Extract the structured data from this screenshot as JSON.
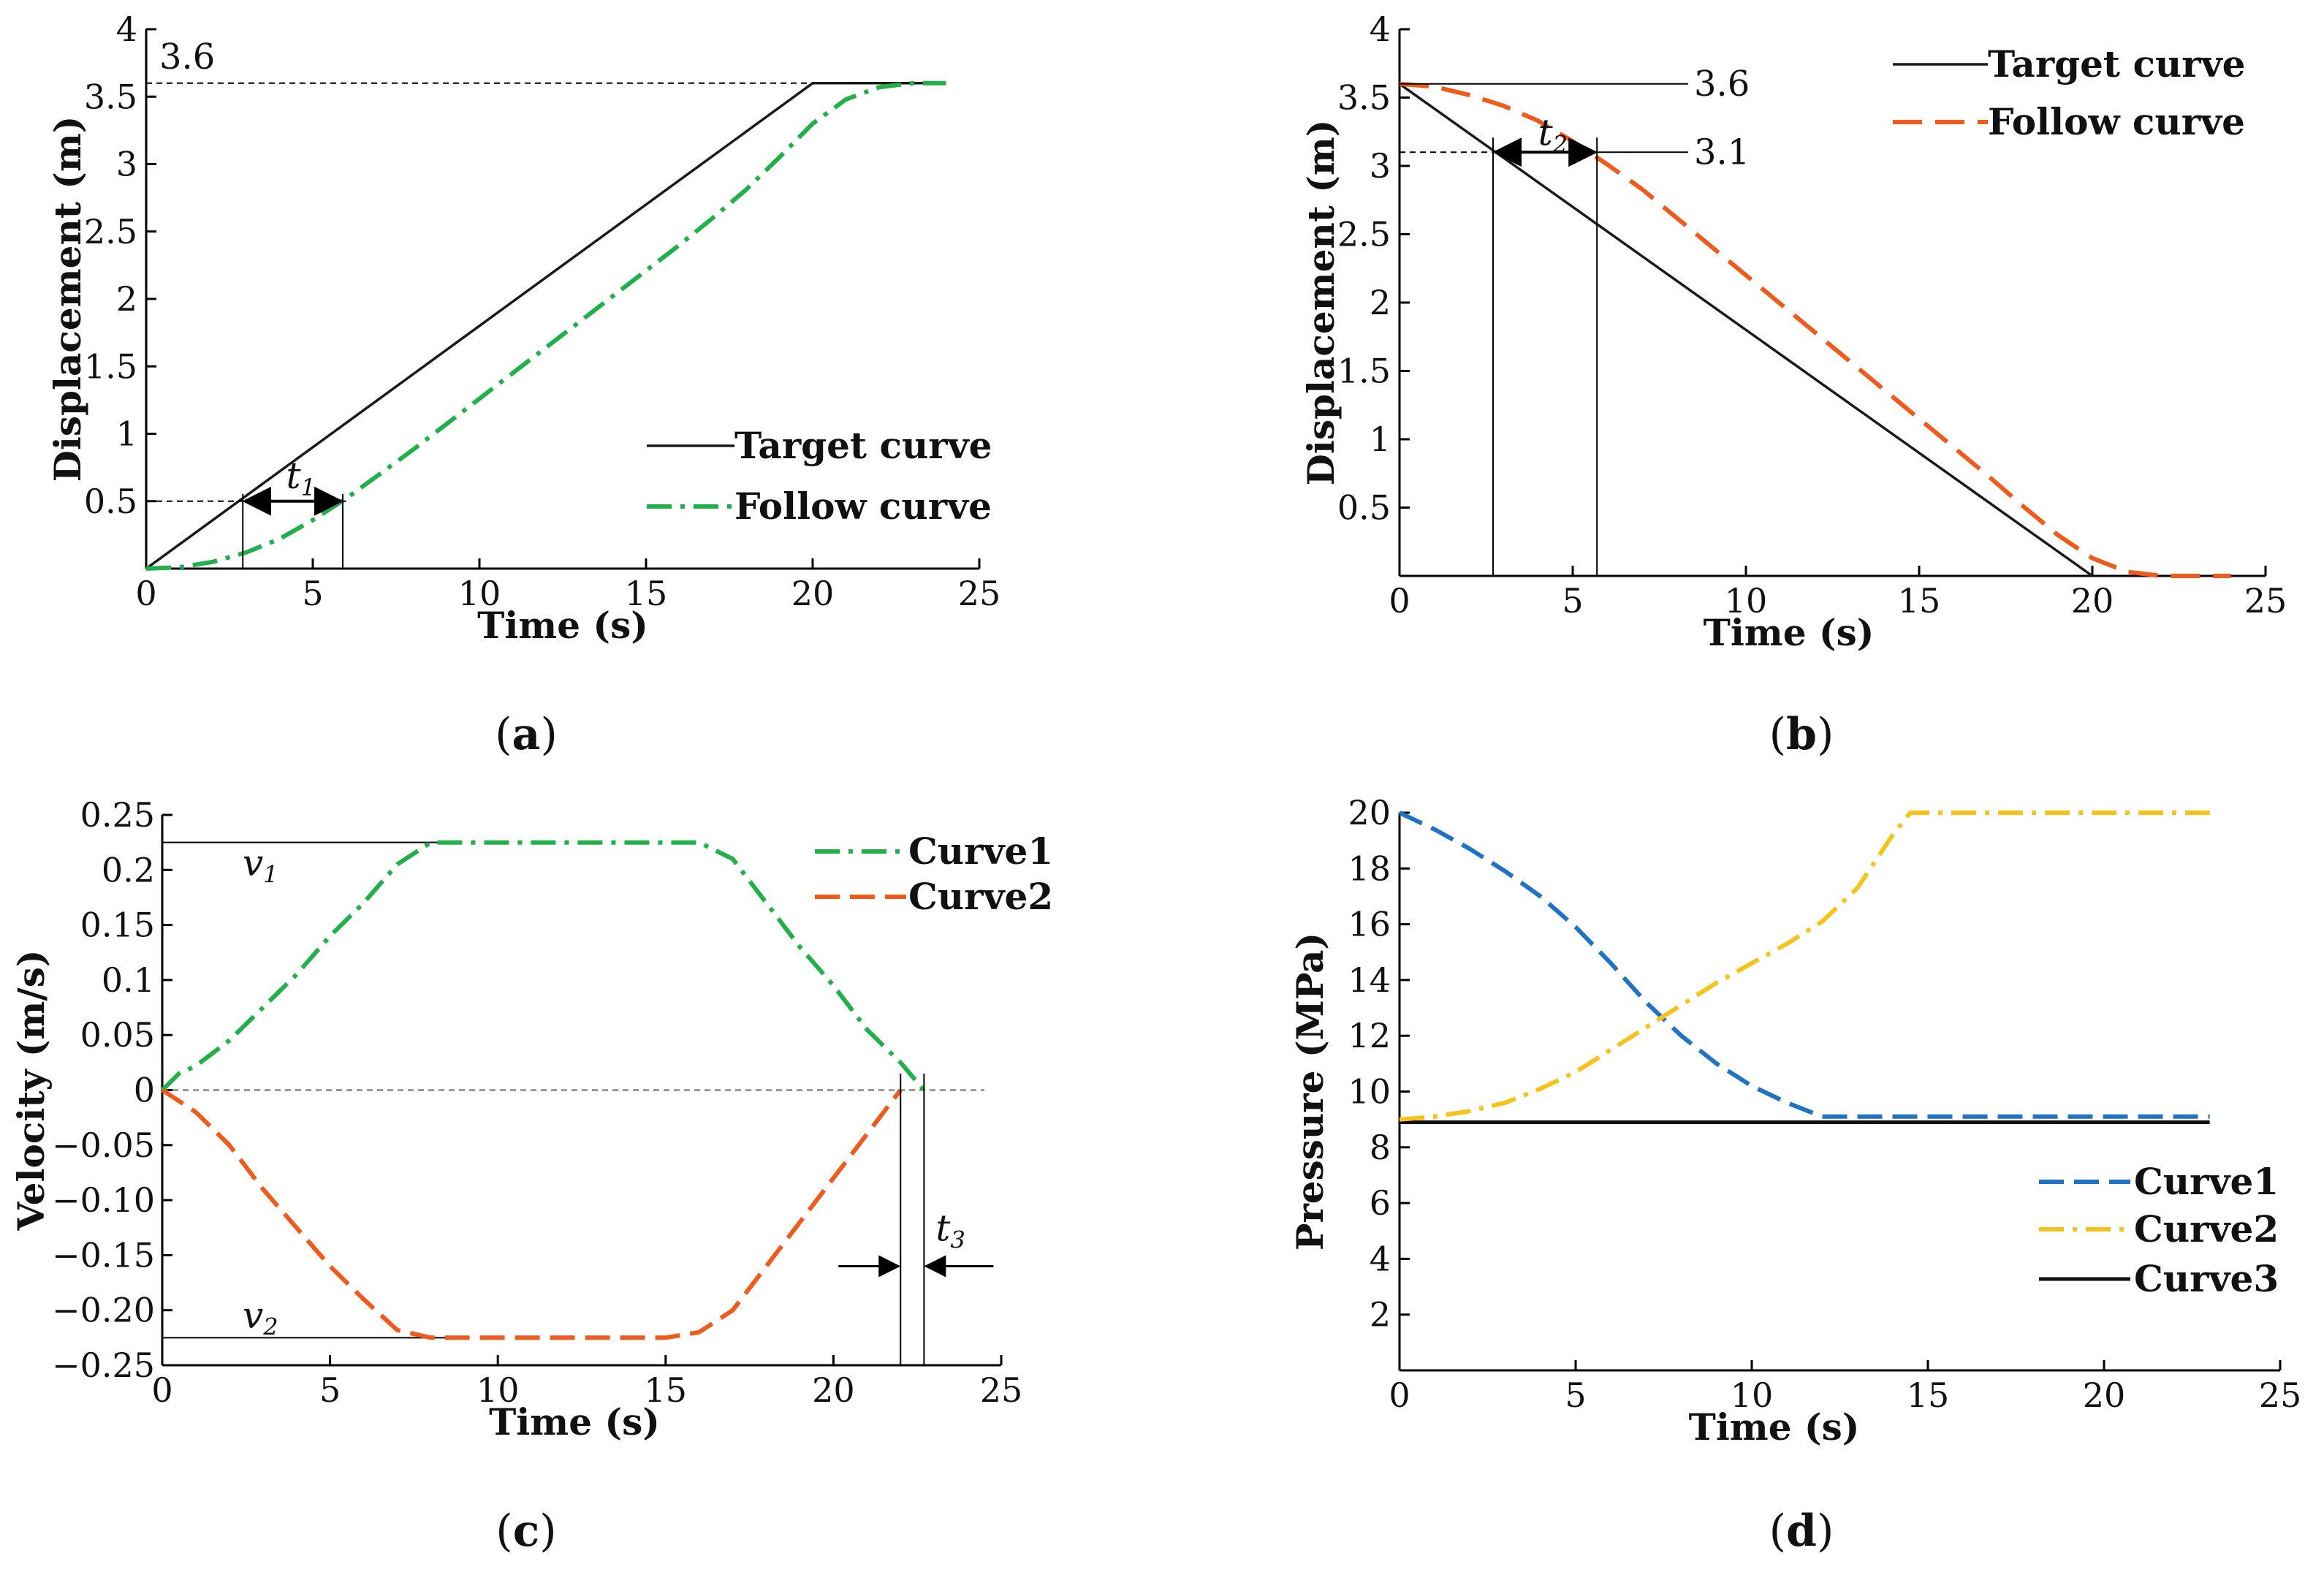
{
  "figure": {
    "panel_labels": [
      "a",
      "b",
      "c",
      "d"
    ]
  },
  "chart_data": [
    {
      "id": "a",
      "type": "line",
      "panel_label": "a",
      "xlabel": "Time (s)",
      "ylabel": "Displacement (m)",
      "xlim": [
        0,
        25
      ],
      "ylim": [
        0,
        4
      ],
      "xticks": [
        "0",
        "5",
        "10",
        "15",
        "20",
        "25"
      ],
      "yticks": [
        "0.5",
        "1",
        "1.5",
        "2",
        "2.5",
        "3",
        "3.5",
        "4"
      ],
      "legend": [
        "Target curve",
        "Follow curve"
      ],
      "colors": {
        "target": "#1a1a1a",
        "follow": "#22b04b"
      },
      "annotations": {
        "level": "3.6",
        "lag_symbol": "t",
        "lag_subscript": "1"
      },
      "series": [
        {
          "name": "Target curve",
          "x": [
            0,
            20,
            24
          ],
          "y": [
            0,
            3.6,
            3.6
          ]
        },
        {
          "name": "Follow curve",
          "x": [
            0,
            1,
            2,
            3,
            4,
            5,
            6,
            7,
            8,
            9,
            10,
            11,
            12,
            13,
            14,
            15,
            16,
            17,
            18,
            19,
            20,
            21,
            22,
            23,
            24
          ],
          "y": [
            0,
            0.01,
            0.05,
            0.12,
            0.22,
            0.36,
            0.52,
            0.7,
            0.88,
            1.07,
            1.26,
            1.45,
            1.64,
            1.83,
            2.02,
            2.21,
            2.4,
            2.6,
            2.81,
            3.05,
            3.3,
            3.48,
            3.57,
            3.6,
            3.6
          ]
        }
      ]
    },
    {
      "id": "b",
      "type": "line",
      "panel_label": "b",
      "xlabel": "Time (s)",
      "ylabel": "Displacement (m)",
      "xlim": [
        0,
        25
      ],
      "ylim": [
        0,
        4
      ],
      "xticks": [
        "0",
        "5",
        "10",
        "15",
        "20",
        "25"
      ],
      "yticks": [
        "0.5",
        "1",
        "1.5",
        "2",
        "2.5",
        "3",
        "3.5",
        "4"
      ],
      "legend": [
        "Target curve",
        "Follow curve"
      ],
      "colors": {
        "target": "#1a1a1a",
        "follow": "#f05a1a"
      },
      "annotations": {
        "level_high": "3.6",
        "level_low": "3.1",
        "lag_symbol": "t",
        "lag_subscript": "2"
      },
      "series": [
        {
          "name": "Target curve",
          "x": [
            0,
            20
          ],
          "y": [
            3.6,
            0
          ]
        },
        {
          "name": "Follow curve",
          "x": [
            0,
            1,
            2,
            3,
            4,
            5,
            6,
            7,
            8,
            9,
            10,
            11,
            12,
            13,
            14,
            15,
            16,
            17,
            18,
            19,
            20,
            21,
            22,
            23,
            24
          ],
          "y": [
            3.6,
            3.58,
            3.52,
            3.44,
            3.33,
            3.18,
            3.01,
            2.83,
            2.62,
            2.41,
            2.2,
            1.99,
            1.78,
            1.57,
            1.36,
            1.15,
            0.94,
            0.73,
            0.51,
            0.3,
            0.13,
            0.03,
            0.0,
            0.0,
            0.0
          ]
        }
      ]
    },
    {
      "id": "c",
      "type": "line",
      "panel_label": "c",
      "xlabel": "Time (s)",
      "ylabel": "Velocity (m/s)",
      "xlim": [
        0,
        25
      ],
      "ylim": [
        -0.25,
        0.25
      ],
      "xticks": [
        "0",
        "5",
        "10",
        "15",
        "20",
        "25"
      ],
      "yticks": [
        "0.25",
        "0.2",
        "0.15",
        "0.1",
        "0.05",
        "0",
        "−0.05",
        "−0.10",
        "−0.15",
        "−0.20",
        "−0.25"
      ],
      "legend": [
        "Curve1",
        "Curve2"
      ],
      "colors": {
        "curve1": "#22b04b",
        "curve2": "#f05a1a"
      },
      "annotations": {
        "v1_symbol": "v",
        "v1_subscript": "1",
        "v2_symbol": "v",
        "v2_subscript": "2",
        "lag_symbol": "t",
        "lag_subscript": "3"
      },
      "series": [
        {
          "name": "Curve1",
          "x": [
            0,
            0.5,
            1,
            2,
            3,
            4,
            5,
            6,
            7,
            8,
            9,
            10,
            11,
            12,
            13,
            14,
            15,
            16,
            17,
            18,
            19,
            20,
            21,
            22,
            22.7
          ],
          "y": [
            0,
            0.015,
            0.022,
            0.045,
            0.075,
            0.105,
            0.14,
            0.17,
            0.205,
            0.225,
            0.225,
            0.225,
            0.225,
            0.225,
            0.225,
            0.225,
            0.225,
            0.225,
            0.21,
            0.17,
            0.13,
            0.095,
            0.055,
            0.025,
            0.0
          ]
        },
        {
          "name": "Curve2",
          "x": [
            0,
            1,
            2,
            3,
            4,
            5,
            6,
            7,
            8,
            9,
            10,
            11,
            12,
            13,
            14,
            15,
            16,
            17,
            18,
            19,
            20,
            21,
            22
          ],
          "y": [
            0,
            -0.02,
            -0.05,
            -0.09,
            -0.125,
            -0.16,
            -0.19,
            -0.218,
            -0.225,
            -0.225,
            -0.225,
            -0.225,
            -0.225,
            -0.225,
            -0.225,
            -0.225,
            -0.22,
            -0.2,
            -0.16,
            -0.12,
            -0.08,
            -0.04,
            0.0
          ]
        }
      ]
    },
    {
      "id": "d",
      "type": "line",
      "panel_label": "d",
      "xlabel": "Time (s)",
      "ylabel": "Pressure (MPa)",
      "xlim": [
        0,
        25
      ],
      "ylim": [
        0,
        20
      ],
      "xticks": [
        "0",
        "5",
        "10",
        "15",
        "20",
        "25"
      ],
      "yticks": [
        "2",
        "4",
        "6",
        "8",
        "10",
        "12",
        "14",
        "16",
        "18",
        "20"
      ],
      "legend": [
        "Curve1",
        "Curve2",
        "Curve3"
      ],
      "colors": {
        "curve1": "#1f72c4",
        "curve2": "#f7c21a",
        "curve3": "#111111"
      },
      "series": [
        {
          "name": "Curve1",
          "x": [
            0,
            1,
            2,
            3,
            4,
            5,
            6,
            7,
            8,
            9,
            10,
            11,
            12,
            13,
            14,
            15,
            16,
            17,
            18,
            19,
            20,
            21,
            22,
            23
          ],
          "y": [
            20,
            19.4,
            18.7,
            17.9,
            17.0,
            15.9,
            14.6,
            13.2,
            12.0,
            11.0,
            10.2,
            9.6,
            9.1,
            9.1,
            9.1,
            9.1,
            9.1,
            9.1,
            9.1,
            9.1,
            9.1,
            9.1,
            9.1,
            9.1
          ]
        },
        {
          "name": "Curve2",
          "x": [
            0,
            1,
            2,
            3,
            4,
            5,
            6,
            7,
            8,
            9,
            10,
            11,
            12,
            13,
            14,
            14.5,
            15,
            16,
            17,
            18,
            19,
            20,
            21,
            22,
            23
          ],
          "y": [
            9.0,
            9.1,
            9.3,
            9.6,
            10.1,
            10.7,
            11.5,
            12.3,
            13.1,
            13.9,
            14.6,
            15.3,
            16.1,
            17.3,
            19.2,
            20,
            20,
            20,
            20,
            20,
            20,
            20,
            20,
            20,
            20
          ]
        },
        {
          "name": "Curve3",
          "x": [
            0,
            23
          ],
          "y": [
            8.9,
            8.9
          ]
        }
      ]
    }
  ]
}
